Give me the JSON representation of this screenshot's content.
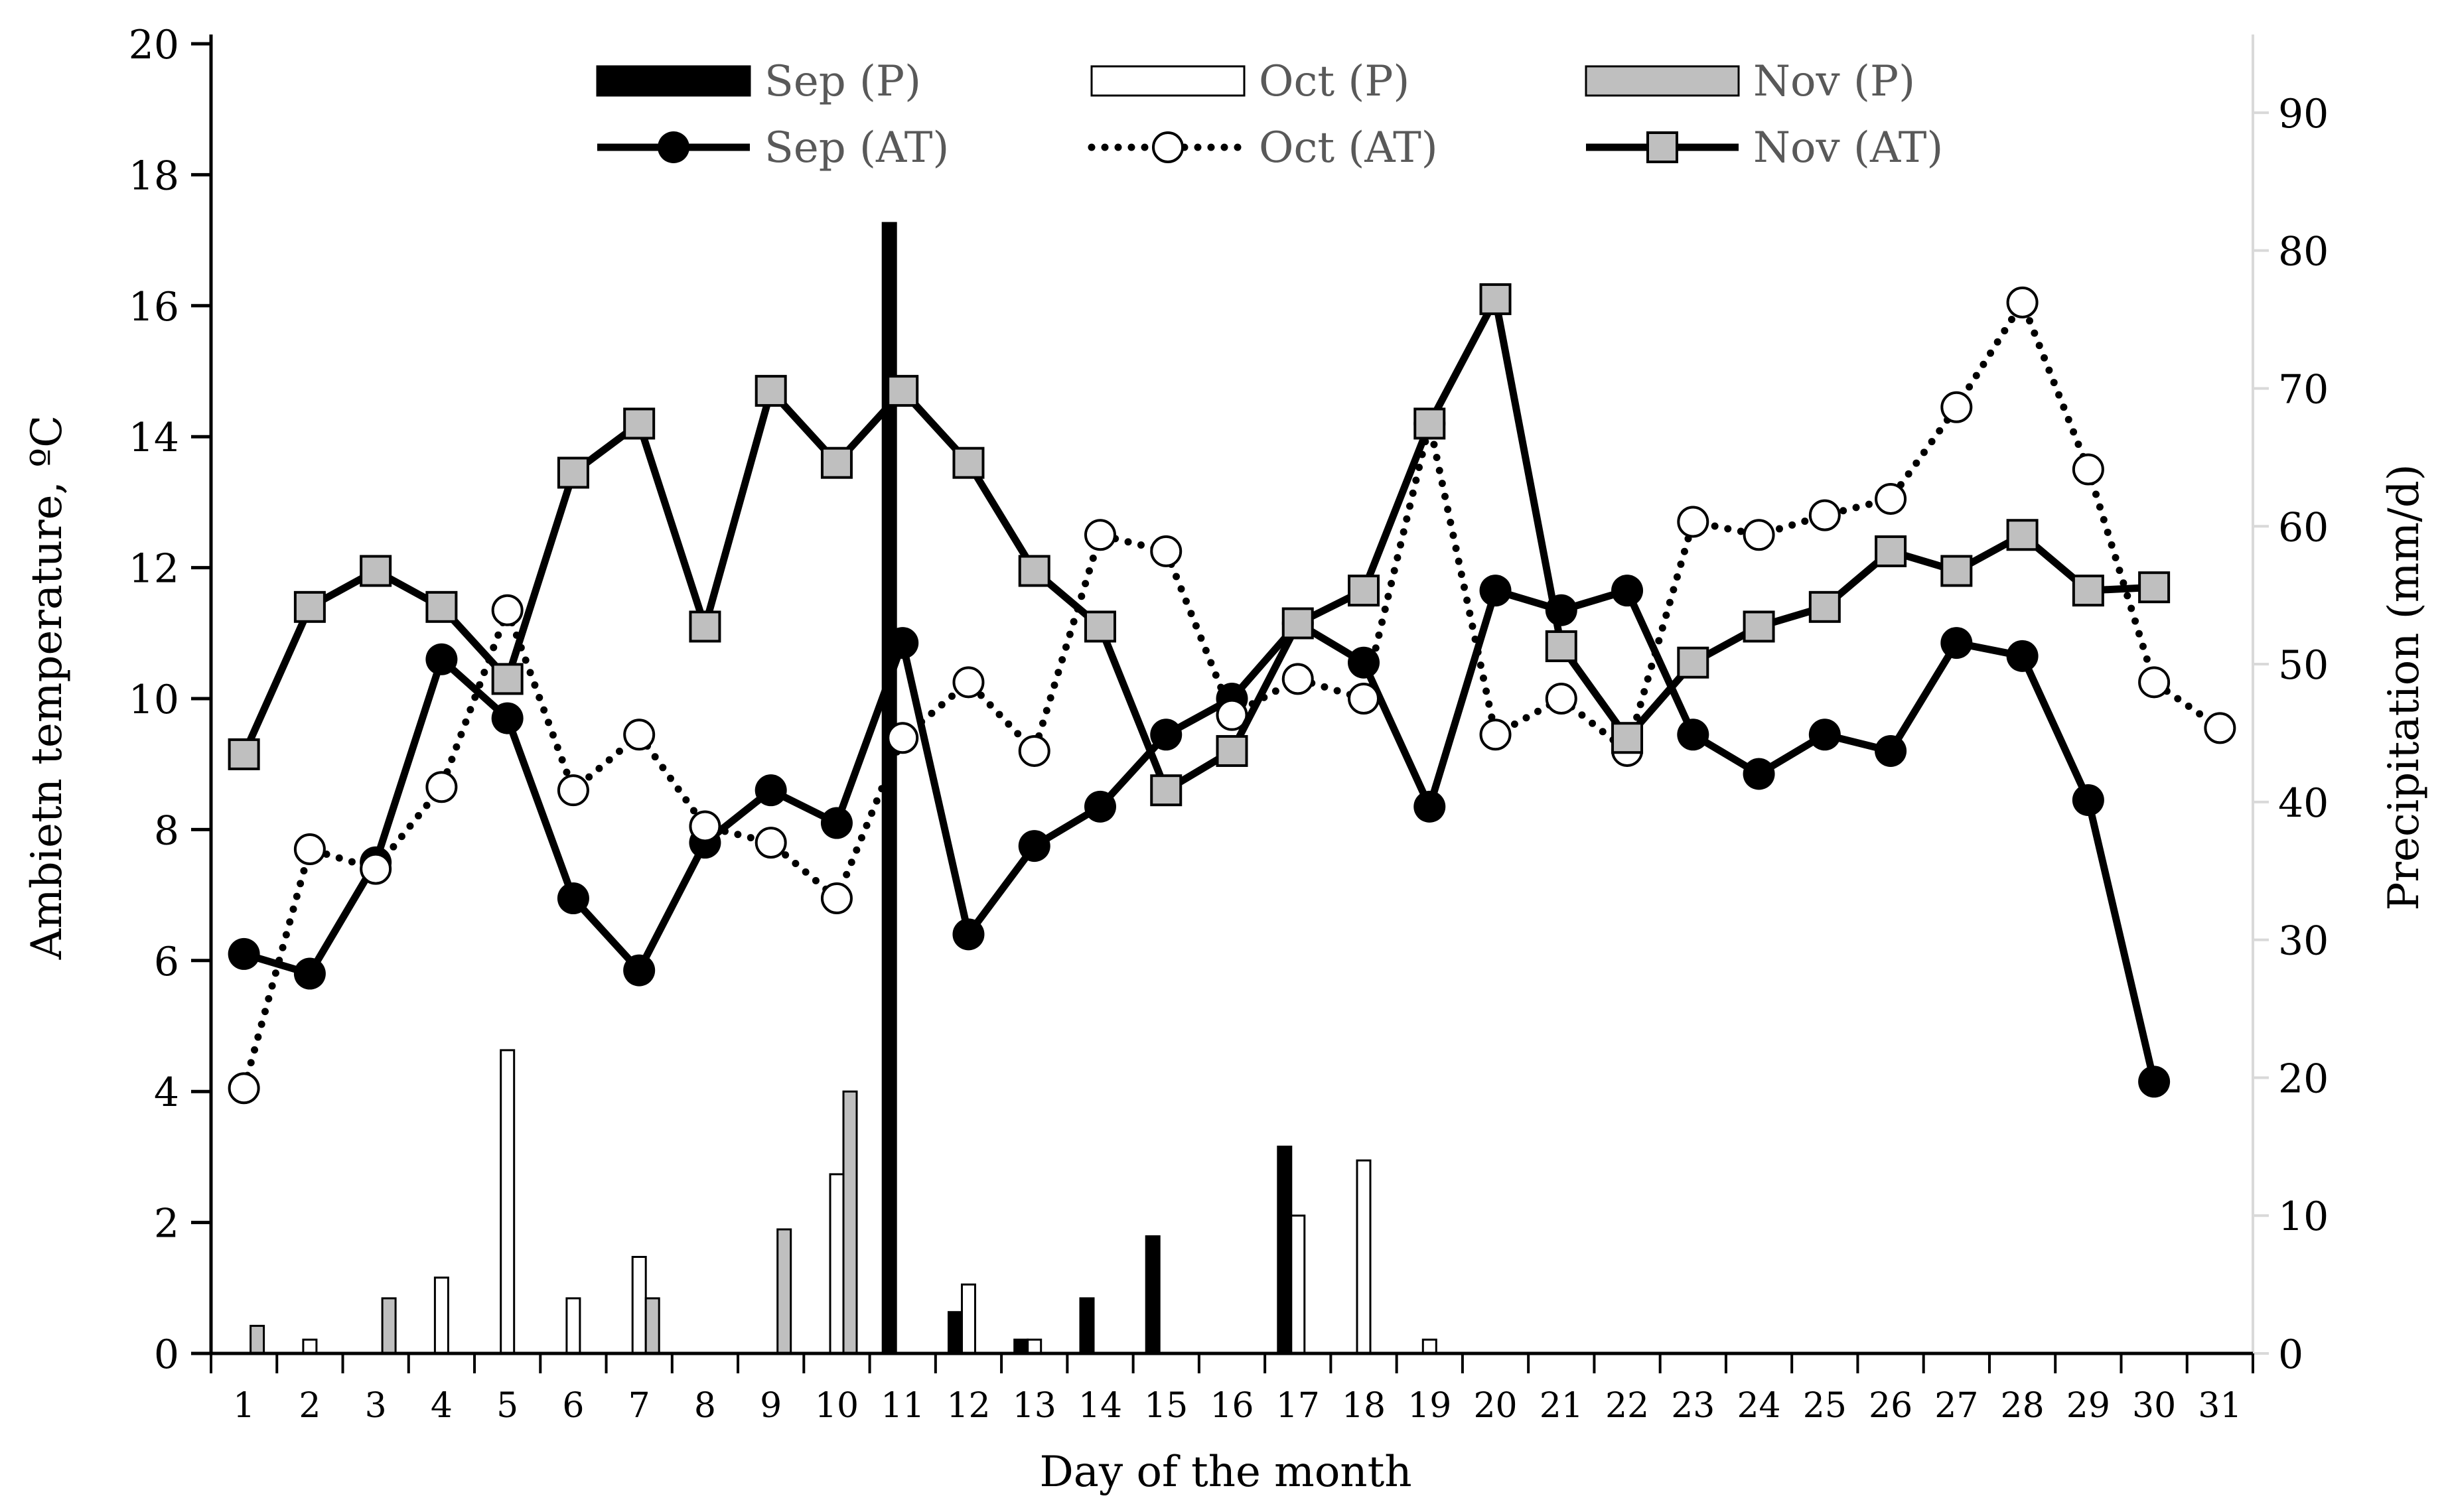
{
  "chart_data": {
    "type": "bar+line",
    "xlabel": "Day of the month",
    "ylabel_left": "Ambietn temperature, ºC",
    "ylabel_right": "Precipitation (mm/d)",
    "x_categories": [
      "1",
      "2",
      "3",
      "4",
      "5",
      "6",
      "7",
      "8",
      "9",
      "10",
      "11",
      "12",
      "13",
      "14",
      "15",
      "16",
      "17",
      "18",
      "19",
      "20",
      "21",
      "22",
      "23",
      "24",
      "25",
      "26",
      "27",
      "28",
      "29",
      "30",
      "31"
    ],
    "y_left": {
      "min": 0,
      "max": 20,
      "ticks": [
        0,
        2,
        4,
        6,
        8,
        10,
        12,
        14,
        16,
        18,
        20
      ]
    },
    "y_right": {
      "min": 0,
      "max": 95,
      "ticks": [
        0,
        10,
        20,
        30,
        40,
        50,
        60,
        70,
        80,
        90
      ]
    },
    "legend": {
      "position": "top",
      "entries": [
        "Sep (P)",
        "Oct (P)",
        "Nov (P)",
        "Sep (AT)",
        "Oct (AT)",
        "Nov (AT)"
      ]
    },
    "bar_series": [
      {
        "name": "Sep (P)",
        "axis": "right",
        "fill": "#000000",
        "stroke": "#000000",
        "values": [
          0,
          0,
          0,
          0,
          0,
          0,
          0,
          0,
          0,
          0,
          82,
          3,
          1,
          4,
          8.5,
          0,
          15,
          0,
          0,
          0,
          0,
          0,
          0,
          0,
          0,
          0,
          0,
          0,
          0,
          0,
          null
        ]
      },
      {
        "name": "Oct (P)",
        "axis": "right",
        "fill": "#ffffff",
        "stroke": "#000000",
        "values": [
          0,
          1,
          0,
          5.5,
          22,
          4,
          7,
          0,
          0,
          13,
          0,
          5,
          1,
          0,
          0,
          0,
          10,
          14,
          1,
          0,
          0,
          0,
          0,
          0,
          0,
          0,
          0,
          0,
          0,
          0,
          0
        ]
      },
      {
        "name": "Nov (P)",
        "axis": "right",
        "fill": "#bfbfbf",
        "stroke": "#000000",
        "values": [
          2,
          0,
          4,
          0,
          0,
          0,
          4,
          0,
          9,
          19,
          0,
          0,
          0,
          0,
          0,
          0,
          0,
          0,
          0,
          0,
          0,
          0,
          0,
          0,
          0,
          0,
          0,
          0,
          0,
          0,
          null
        ]
      }
    ],
    "line_series": [
      {
        "name": "Sep (AT)",
        "axis": "left",
        "style": "solid",
        "marker": "circle-filled",
        "values": [
          6.1,
          5.8,
          7.5,
          10.6,
          9.7,
          6.95,
          5.85,
          7.8,
          8.6,
          8.1,
          10.85,
          6.4,
          7.75,
          8.35,
          9.45,
          10.0,
          11.15,
          10.55,
          8.35,
          11.65,
          11.35,
          11.65,
          9.45,
          8.85,
          9.45,
          9.2,
          10.85,
          10.65,
          8.45,
          4.15,
          null
        ]
      },
      {
        "name": "Oct (AT)",
        "axis": "left",
        "style": "dotted",
        "marker": "circle-open",
        "values": [
          4.05,
          7.7,
          7.4,
          8.65,
          11.35,
          8.6,
          9.45,
          8.05,
          7.8,
          6.95,
          9.4,
          10.25,
          9.2,
          12.5,
          12.25,
          9.75,
          10.3,
          10.0,
          14.2,
          9.45,
          10.0,
          9.2,
          12.7,
          12.5,
          12.8,
          13.05,
          14.45,
          16.05,
          13.5,
          10.25,
          9.55
        ]
      },
      {
        "name": "Nov (AT)",
        "axis": "left",
        "style": "solid",
        "marker": "square-grey",
        "values": [
          9.15,
          11.4,
          11.95,
          11.4,
          10.3,
          13.45,
          14.2,
          11.1,
          14.7,
          13.6,
          14.7,
          13.6,
          11.95,
          11.1,
          8.6,
          9.2,
          11.15,
          11.65,
          14.2,
          16.1,
          10.8,
          9.4,
          10.55,
          11.1,
          11.4,
          12.25,
          11.95,
          12.5,
          11.65,
          11.7,
          null
        ]
      }
    ]
  }
}
